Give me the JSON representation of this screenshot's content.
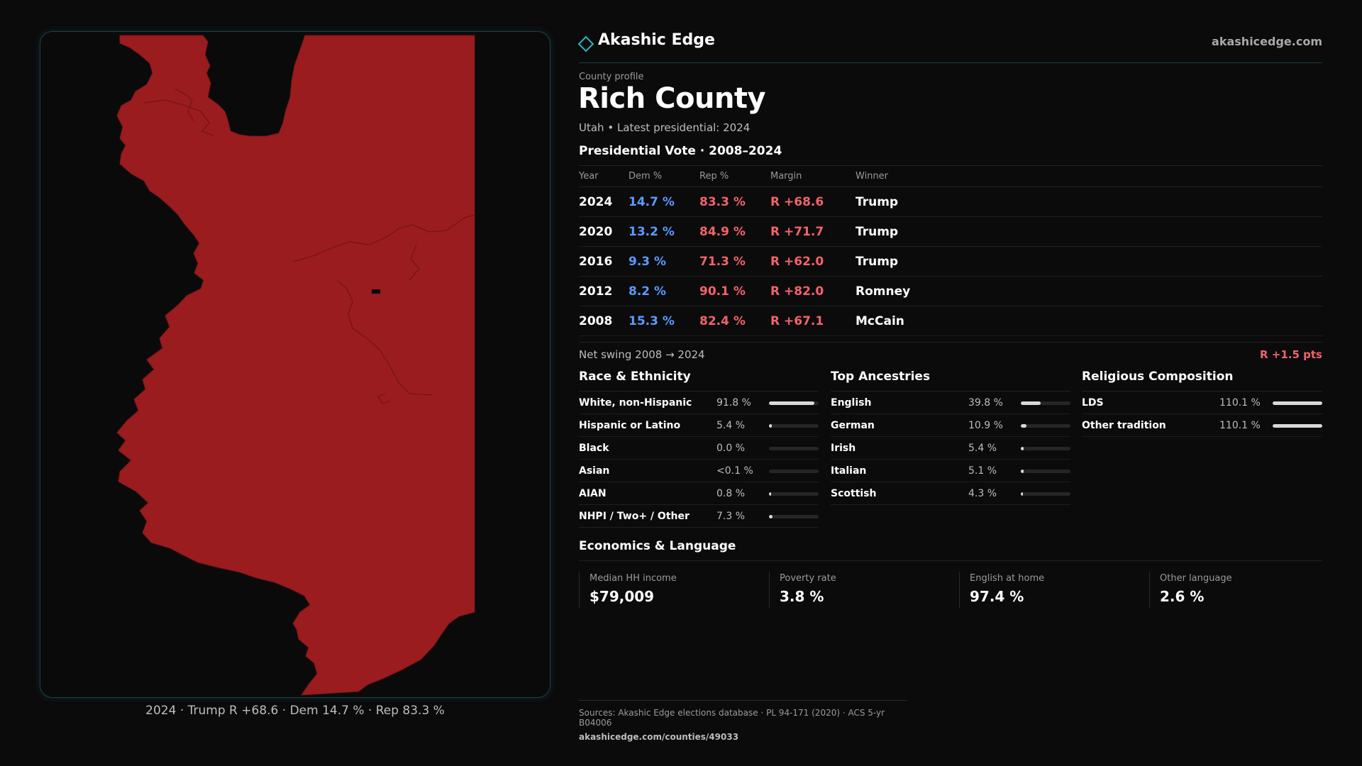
{
  "brand": {
    "name": "Akashic Edge",
    "url": "akashicedge.com",
    "icon": "diamond-outline-icon",
    "accent": "#2fb3c1"
  },
  "profile": {
    "eyebrow": "County profile",
    "title": "Rich County",
    "subtitle": "Utah • Latest presidential: 2024"
  },
  "map": {
    "caption": "2024 · Trump R +68.6 · Dem 14.7 % · Rep 83.3 %",
    "fill_color": "#9a1c1f"
  },
  "vote": {
    "heading": "Presidential Vote · 2008–2024",
    "columns": [
      "Year",
      "Dem %",
      "Rep %",
      "Margin",
      "Winner"
    ],
    "rows": [
      {
        "year": "2024",
        "dem": "14.7 %",
        "rep": "83.3 %",
        "margin": "R +68.6",
        "winner": "Trump"
      },
      {
        "year": "2020",
        "dem": "13.2 %",
        "rep": "84.9 %",
        "margin": "R +71.7",
        "winner": "Trump"
      },
      {
        "year": "2016",
        "dem": "9.3 %",
        "rep": "71.3 %",
        "margin": "R +62.0",
        "winner": "Trump"
      },
      {
        "year": "2012",
        "dem": "8.2 %",
        "rep": "90.1 %",
        "margin": "R +82.0",
        "winner": "Romney"
      },
      {
        "year": "2008",
        "dem": "15.3 %",
        "rep": "82.4 %",
        "margin": "R +67.1",
        "winner": "McCain"
      }
    ],
    "swing_label": "Net swing 2008 → 2024",
    "swing_value": "R +1.5 pts",
    "dem_color": "#5b9bff",
    "rep_color": "#f2636a"
  },
  "race": {
    "heading": "Race & Ethnicity",
    "items": [
      {
        "label": "White, non-Hispanic",
        "value": "91.8 %",
        "level": 0.918
      },
      {
        "label": "Hispanic or Latino",
        "value": "5.4 %",
        "level": 0.054
      },
      {
        "label": "Black",
        "value": "0.0 %",
        "level": 0.0
      },
      {
        "label": "Asian",
        "value": "<0.1 %",
        "level": 0.0
      },
      {
        "label": "AIAN",
        "value": "0.8 %",
        "level": 0.008
      },
      {
        "label": "NHPI / Two+ / Other",
        "value": "7.3 %",
        "level": 0.073
      }
    ]
  },
  "ancestry": {
    "heading": "Top Ancestries",
    "items": [
      {
        "label": "English",
        "value": "39.8 %",
        "level": 0.398
      },
      {
        "label": "German",
        "value": "10.9 %",
        "level": 0.109
      },
      {
        "label": "Irish",
        "value": "5.4 %",
        "level": 0.054
      },
      {
        "label": "Italian",
        "value": "5.1 %",
        "level": 0.051
      },
      {
        "label": "Scottish",
        "value": "4.3 %",
        "level": 0.043
      }
    ]
  },
  "religion": {
    "heading": "Religious Composition",
    "items": [
      {
        "label": "LDS",
        "value": "110.1 %",
        "level": 1.0
      },
      {
        "label": "Other tradition",
        "value": "110.1 %",
        "level": 1.0
      }
    ]
  },
  "economics": {
    "heading": "Economics & Language",
    "stats": [
      {
        "label": "Median HH income",
        "value": "$79,009"
      },
      {
        "label": "Poverty rate",
        "value": "3.8 %"
      },
      {
        "label": "English at home",
        "value": "97.4 %"
      },
      {
        "label": "Other language",
        "value": "2.6 %"
      }
    ]
  },
  "sources": {
    "text": "Sources: Akashic Edge elections database · PL 94-171 (2020) · ACS 5-yr B04006",
    "url": "akashicedge.com/counties/49033"
  }
}
